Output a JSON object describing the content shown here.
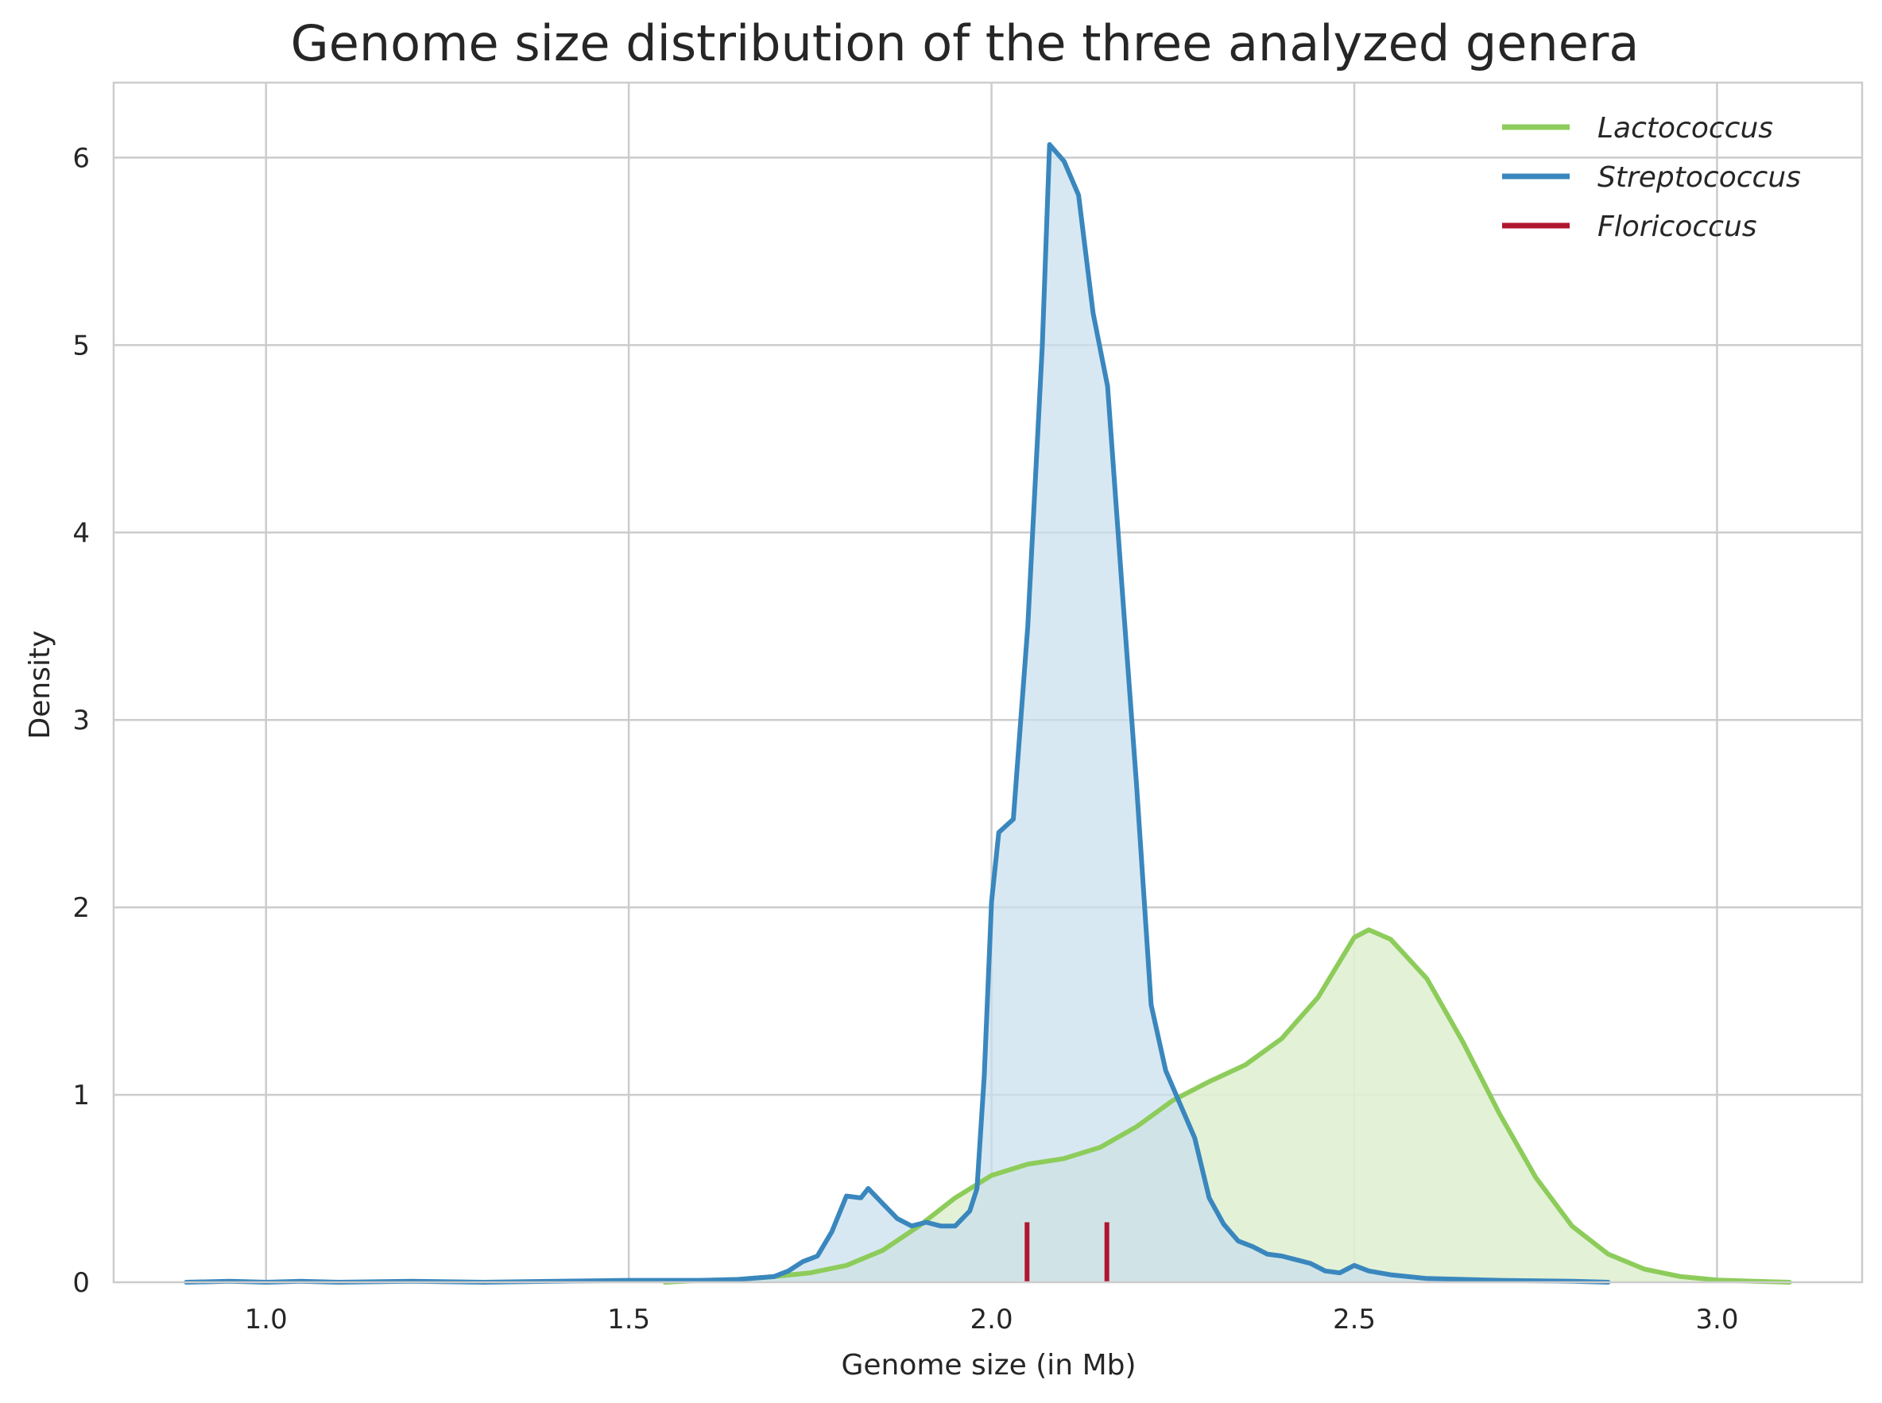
{
  "chart_data": {
    "type": "area",
    "title": "Genome size distribution of the three analyzed genera",
    "xlabel": "Genome size (in Mb)",
    "ylabel": "Density",
    "xlim": [
      0.79,
      3.2
    ],
    "ylim": [
      0,
      6.4
    ],
    "x_ticks": [
      "1.0",
      "1.5",
      "2.0",
      "2.5",
      "3.0"
    ],
    "y_ticks": [
      "0",
      "1",
      "2",
      "3",
      "4",
      "5",
      "6"
    ],
    "grid": true,
    "legend_position": "top-right",
    "series": [
      {
        "name": "Lactococcus",
        "color": "#8dcc5a",
        "fill": "#e0f0d3",
        "style": "line-filled",
        "points": [
          [
            1.55,
            0.0
          ],
          [
            1.6,
            0.01
          ],
          [
            1.65,
            0.015
          ],
          [
            1.7,
            0.03
          ],
          [
            1.75,
            0.05
          ],
          [
            1.8,
            0.09
          ],
          [
            1.85,
            0.17
          ],
          [
            1.9,
            0.3
          ],
          [
            1.95,
            0.45
          ],
          [
            2.0,
            0.57
          ],
          [
            2.05,
            0.63
          ],
          [
            2.1,
            0.66
          ],
          [
            2.15,
            0.72
          ],
          [
            2.2,
            0.83
          ],
          [
            2.25,
            0.97
          ],
          [
            2.3,
            1.07
          ],
          [
            2.35,
            1.16
          ],
          [
            2.4,
            1.3
          ],
          [
            2.45,
            1.52
          ],
          [
            2.5,
            1.84
          ],
          [
            2.52,
            1.88
          ],
          [
            2.55,
            1.83
          ],
          [
            2.6,
            1.62
          ],
          [
            2.65,
            1.28
          ],
          [
            2.7,
            0.9
          ],
          [
            2.75,
            0.56
          ],
          [
            2.8,
            0.3
          ],
          [
            2.85,
            0.15
          ],
          [
            2.9,
            0.07
          ],
          [
            2.95,
            0.03
          ],
          [
            3.0,
            0.012
          ],
          [
            3.05,
            0.005
          ],
          [
            3.1,
            0.0
          ]
        ]
      },
      {
        "name": "Streptococcus",
        "color": "#3a87be",
        "fill": "#c9dfed",
        "style": "line-filled",
        "points": [
          [
            0.89,
            0.0
          ],
          [
            0.95,
            0.005
          ],
          [
            1.0,
            0.0
          ],
          [
            1.05,
            0.005
          ],
          [
            1.1,
            0.0
          ],
          [
            1.2,
            0.005
          ],
          [
            1.3,
            0.0
          ],
          [
            1.4,
            0.005
          ],
          [
            1.5,
            0.01
          ],
          [
            1.55,
            0.01
          ],
          [
            1.6,
            0.01
          ],
          [
            1.65,
            0.015
          ],
          [
            1.7,
            0.03
          ],
          [
            1.72,
            0.06
          ],
          [
            1.74,
            0.11
          ],
          [
            1.76,
            0.14
          ],
          [
            1.78,
            0.27
          ],
          [
            1.8,
            0.46
          ],
          [
            1.82,
            0.45
          ],
          [
            1.83,
            0.5
          ],
          [
            1.85,
            0.42
          ],
          [
            1.87,
            0.34
          ],
          [
            1.89,
            0.3
          ],
          [
            1.91,
            0.32
          ],
          [
            1.93,
            0.3
          ],
          [
            1.95,
            0.3
          ],
          [
            1.97,
            0.38
          ],
          [
            1.98,
            0.5
          ],
          [
            1.99,
            1.1
          ],
          [
            2.0,
            2.03
          ],
          [
            2.01,
            2.4
          ],
          [
            2.03,
            2.47
          ],
          [
            2.05,
            3.5
          ],
          [
            2.07,
            5.0
          ],
          [
            2.08,
            6.07
          ],
          [
            2.1,
            5.98
          ],
          [
            2.12,
            5.8
          ],
          [
            2.14,
            5.17
          ],
          [
            2.16,
            4.78
          ],
          [
            2.18,
            3.7
          ],
          [
            2.2,
            2.65
          ],
          [
            2.22,
            1.48
          ],
          [
            2.24,
            1.13
          ],
          [
            2.26,
            0.95
          ],
          [
            2.28,
            0.77
          ],
          [
            2.3,
            0.45
          ],
          [
            2.32,
            0.31
          ],
          [
            2.34,
            0.22
          ],
          [
            2.36,
            0.19
          ],
          [
            2.38,
            0.15
          ],
          [
            2.4,
            0.14
          ],
          [
            2.42,
            0.12
          ],
          [
            2.44,
            0.1
          ],
          [
            2.46,
            0.06
          ],
          [
            2.48,
            0.05
          ],
          [
            2.5,
            0.09
          ],
          [
            2.52,
            0.06
          ],
          [
            2.55,
            0.04
          ],
          [
            2.6,
            0.02
          ],
          [
            2.7,
            0.01
          ],
          [
            2.8,
            0.005
          ],
          [
            2.85,
            0.0
          ]
        ]
      },
      {
        "name": "Floricoccus",
        "color": "#b0162f",
        "style": "rug",
        "values": [
          2.049,
          2.159
        ],
        "height": 0.32
      }
    ]
  }
}
